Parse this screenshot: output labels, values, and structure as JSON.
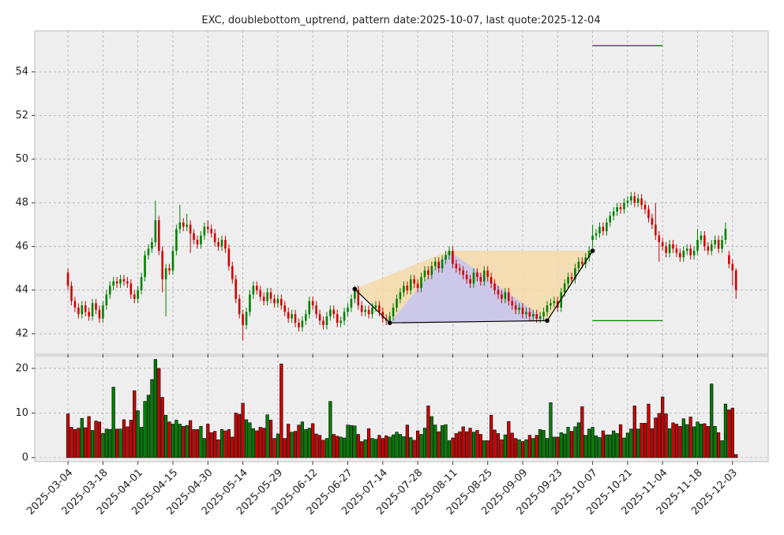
{
  "chart_data": {
    "type": "candlestick",
    "title": "EXC, doublebottom_uptrend, pattern date:2025-10-07, last quote:2025-12-04",
    "up_color": "#008000",
    "down_color": "#d00000",
    "grid": true,
    "xlim": [
      -9.5,
      200.2
    ],
    "xticks": [
      {
        "value": 0,
        "label": "2025-03-04"
      },
      {
        "value": 10,
        "label": "2025-03-18"
      },
      {
        "value": 20,
        "label": "2025-04-01"
      },
      {
        "value": 30,
        "label": "2025-04-15"
      },
      {
        "value": 40,
        "label": "2025-04-30"
      },
      {
        "value": 50,
        "label": "2025-05-14"
      },
      {
        "value": 60,
        "label": "2025-05-29"
      },
      {
        "value": 70,
        "label": "2025-06-12"
      },
      {
        "value": 80,
        "label": "2025-06-27"
      },
      {
        "value": 90,
        "label": "2025-07-14"
      },
      {
        "value": 100,
        "label": "2025-07-28"
      },
      {
        "value": 110,
        "label": "2025-08-11"
      },
      {
        "value": 120,
        "label": "2025-08-25"
      },
      {
        "value": 130,
        "label": "2025-09-09"
      },
      {
        "value": 140,
        "label": "2025-09-23"
      },
      {
        "value": 150,
        "label": "2025-10-07"
      },
      {
        "value": 160,
        "label": "2025-10-21"
      },
      {
        "value": 170,
        "label": "2025-11-04"
      },
      {
        "value": 180,
        "label": "2025-11-18"
      },
      {
        "value": 190,
        "label": "2025-12-03"
      }
    ],
    "ylim": [
      41.06,
      55.88
    ],
    "yticks": [
      42,
      44,
      46,
      48,
      50,
      52,
      54
    ],
    "y2lim": [
      -0.9,
      22.8
    ],
    "y2ticks": [
      0,
      10,
      20
    ],
    "open": [
      44.8,
      44.2,
      43.5,
      43.2,
      42.9,
      43.3,
      43.0,
      42.8,
      43.4,
      43.1,
      42.7,
      43.3,
      43.8,
      44.2,
      44.4,
      44.3,
      44.5,
      44.4,
      44.3,
      43.8,
      43.6,
      44.0,
      44.6,
      45.6,
      45.9,
      46.2,
      47.2,
      45.8,
      44.5,
      45.0,
      44.9,
      45.8,
      46.8,
      47.1,
      46.9,
      47.0,
      46.6,
      46.3,
      46.1,
      46.5,
      46.9,
      46.8,
      46.6,
      46.2,
      46.0,
      46.3,
      45.9,
      45.1,
      44.5,
      43.6,
      42.9,
      42.4,
      43.0,
      43.8,
      44.2,
      44.0,
      43.7,
      43.5,
      43.9,
      43.6,
      43.4,
      43.6,
      43.3,
      43.0,
      42.7,
      42.9,
      42.5,
      42.3,
      42.6,
      42.9,
      43.5,
      43.3,
      42.9,
      42.6,
      42.4,
      42.8,
      43.1,
      42.9,
      42.5,
      42.6,
      43.0,
      43.2,
      43.6,
      44.0,
      43.3,
      43.0,
      43.1,
      42.9,
      43.2,
      43.3,
      43.0,
      42.7,
      42.6,
      42.8,
      43.2,
      43.6,
      43.9,
      44.2,
      44.0,
      44.5,
      44.3,
      44.1,
      44.6,
      44.9,
      44.7,
      45.1,
      45.3,
      45.0,
      45.4,
      45.6,
      45.8,
      45.2,
      45.0,
      44.9,
      44.7,
      44.5,
      44.3,
      44.8,
      44.6,
      44.4,
      44.9,
      44.6,
      44.3,
      44.0,
      43.8,
      43.6,
      43.9,
      43.5,
      43.3,
      43.1,
      43.2,
      42.9,
      43.0,
      42.8,
      42.9,
      42.7,
      42.8,
      43.0,
      43.3,
      43.4,
      43.5,
      43.2,
      43.9,
      44.3,
      44.6,
      44.5,
      45.0,
      45.3,
      45.2,
      45.5,
      46.3,
      46.5,
      46.6,
      46.9,
      46.7,
      47.1,
      47.4,
      47.6,
      47.8,
      47.7,
      48.0,
      48.1,
      48.3,
      48.0,
      48.2,
      47.9,
      47.7,
      47.3,
      47.0,
      46.5,
      46.2,
      46.0,
      45.7,
      46.1,
      45.9,
      45.7,
      45.5,
      45.8,
      45.9,
      45.6,
      45.8,
      46.3,
      46.5,
      46.0,
      45.8,
      46.1,
      46.3,
      45.9,
      46.3,
      45.6,
      45.2,
      44.9
    ],
    "high": [
      45.0,
      44.4,
      43.7,
      43.4,
      43.5,
      43.5,
      43.2,
      43.6,
      43.6,
      43.3,
      43.5,
      44.0,
      44.4,
      44.6,
      44.6,
      44.7,
      44.7,
      44.6,
      44.5,
      44.0,
      44.2,
      44.8,
      45.8,
      46.1,
      46.4,
      48.1,
      47.4,
      46.0,
      45.2,
      45.2,
      46.0,
      47.0,
      47.9,
      47.3,
      47.5,
      47.2,
      46.8,
      46.5,
      46.7,
      47.1,
      47.2,
      47.0,
      46.8,
      46.4,
      46.5,
      46.5,
      46.1,
      45.3,
      44.7,
      43.8,
      43.1,
      43.2,
      44.0,
      44.4,
      44.4,
      44.2,
      43.9,
      44.1,
      44.1,
      43.8,
      43.8,
      43.8,
      43.5,
      43.2,
      43.1,
      43.1,
      42.7,
      42.8,
      43.1,
      43.7,
      43.7,
      43.5,
      43.1,
      42.8,
      43.0,
      43.3,
      43.3,
      43.1,
      42.8,
      43.2,
      43.4,
      43.8,
      44.2,
      44.2,
      43.5,
      43.3,
      43.3,
      43.4,
      43.5,
      43.5,
      43.2,
      42.9,
      43.0,
      43.4,
      43.8,
      44.1,
      44.4,
      44.4,
      44.7,
      44.7,
      44.5,
      44.8,
      45.1,
      45.1,
      45.3,
      45.5,
      45.5,
      45.6,
      45.8,
      46.0,
      46.0,
      45.4,
      45.2,
      45.1,
      44.9,
      44.7,
      45.0,
      45.0,
      44.8,
      45.1,
      45.1,
      44.8,
      44.5,
      44.2,
      44.0,
      44.1,
      44.1,
      43.7,
      43.5,
      43.4,
      43.4,
      43.2,
      43.2,
      43.1,
      43.1,
      43.0,
      43.2,
      43.5,
      43.6,
      43.7,
      43.7,
      44.1,
      44.5,
      44.8,
      44.8,
      45.2,
      45.5,
      45.5,
      45.7,
      46.0,
      47.0,
      46.8,
      47.1,
      47.1,
      47.3,
      47.6,
      47.8,
      48.0,
      48.0,
      48.2,
      48.3,
      48.5,
      48.5,
      48.4,
      48.4,
      48.1,
      47.9,
      47.5,
      48.0,
      46.7,
      46.4,
      46.2,
      46.3,
      46.3,
      46.1,
      45.9,
      46.0,
      46.1,
      46.1,
      46.0,
      46.8,
      46.7,
      46.7,
      46.2,
      46.3,
      46.5,
      46.5,
      46.5,
      47.1,
      45.8,
      45.4,
      45.0
    ],
    "low": [
      44.0,
      43.3,
      43.0,
      42.7,
      42.7,
      42.8,
      42.6,
      42.6,
      42.9,
      42.5,
      42.5,
      43.1,
      43.6,
      44.0,
      44.1,
      44.1,
      44.2,
      44.1,
      43.6,
      43.4,
      43.4,
      43.8,
      44.4,
      45.4,
      45.7,
      46.0,
      45.6,
      43.9,
      42.8,
      44.7,
      44.7,
      45.6,
      46.6,
      46.7,
      46.7,
      45.7,
      46.1,
      45.9,
      45.9,
      46.3,
      46.6,
      46.4,
      46.0,
      45.8,
      45.8,
      45.7,
      44.9,
      44.3,
      43.4,
      42.7,
      41.7,
      42.2,
      42.8,
      43.6,
      43.8,
      43.5,
      43.3,
      43.3,
      43.4,
      43.2,
      43.2,
      43.1,
      42.8,
      42.5,
      42.5,
      42.3,
      42.1,
      42.1,
      42.4,
      42.7,
      43.1,
      42.7,
      42.4,
      42.2,
      42.2,
      42.6,
      42.7,
      42.3,
      42.3,
      42.4,
      42.8,
      43.0,
      43.4,
      43.1,
      42.8,
      42.8,
      42.7,
      42.7,
      43.0,
      42.8,
      42.5,
      42.4,
      42.4,
      42.6,
      43.0,
      43.4,
      43.7,
      43.8,
      43.8,
      44.1,
      43.9,
      43.9,
      44.4,
      44.5,
      44.5,
      44.9,
      44.8,
      44.8,
      45.2,
      45.4,
      45.0,
      44.8,
      44.7,
      44.5,
      44.3,
      44.1,
      44.1,
      44.4,
      44.2,
      44.2,
      44.4,
      44.1,
      43.8,
      43.6,
      43.4,
      43.4,
      43.3,
      43.1,
      42.9,
      42.9,
      42.7,
      42.7,
      42.6,
      42.6,
      42.5,
      42.5,
      42.6,
      42.8,
      43.1,
      43.2,
      43.0,
      43.0,
      43.7,
      44.1,
      44.3,
      44.3,
      44.8,
      45.0,
      45.0,
      45.3,
      45.8,
      46.3,
      46.4,
      46.5,
      46.5,
      46.9,
      47.2,
      47.4,
      47.5,
      47.5,
      47.8,
      47.9,
      47.8,
      47.8,
      47.7,
      47.5,
      47.1,
      46.8,
      46.3,
      45.3,
      45.8,
      45.5,
      45.5,
      45.7,
      45.5,
      45.3,
      45.3,
      45.6,
      45.4,
      45.4,
      45.6,
      46.1,
      45.8,
      45.6,
      45.6,
      45.9,
      45.7,
      45.7,
      46.1,
      45.0,
      44.2,
      43.6
    ],
    "close": [
      44.2,
      43.5,
      43.2,
      42.9,
      43.3,
      43.0,
      42.8,
      43.4,
      43.1,
      42.7,
      43.3,
      43.8,
      44.2,
      44.4,
      44.3,
      44.5,
      44.4,
      44.3,
      43.8,
      43.6,
      44.0,
      44.6,
      45.6,
      45.9,
      46.2,
      47.2,
      45.8,
      44.5,
      45.0,
      44.9,
      45.8,
      46.8,
      47.1,
      46.9,
      47.0,
      46.6,
      46.3,
      46.1,
      46.5,
      46.9,
      46.8,
      46.6,
      46.2,
      46.0,
      46.3,
      45.9,
      45.1,
      44.5,
      43.6,
      42.9,
      42.4,
      43.0,
      43.8,
      44.2,
      44.0,
      43.7,
      43.5,
      43.9,
      43.6,
      43.4,
      43.6,
      43.3,
      43.0,
      42.7,
      42.9,
      42.5,
      42.3,
      42.6,
      42.9,
      43.5,
      43.3,
      42.9,
      42.6,
      42.4,
      42.8,
      43.1,
      42.9,
      42.5,
      42.6,
      43.0,
      43.2,
      43.6,
      44.0,
      43.3,
      43.0,
      43.1,
      42.9,
      43.2,
      43.3,
      43.0,
      42.7,
      42.6,
      42.8,
      43.2,
      43.6,
      43.9,
      44.2,
      44.0,
      44.5,
      44.3,
      44.1,
      44.6,
      44.9,
      44.7,
      45.1,
      45.3,
      45.0,
      45.4,
      45.6,
      45.8,
      45.2,
      45.0,
      44.9,
      44.7,
      44.5,
      44.3,
      44.8,
      44.6,
      44.4,
      44.9,
      44.6,
      44.3,
      44.0,
      43.8,
      43.6,
      43.9,
      43.5,
      43.3,
      43.1,
      43.2,
      42.9,
      43.0,
      42.8,
      42.9,
      42.7,
      42.8,
      43.0,
      43.3,
      43.4,
      43.5,
      43.2,
      43.9,
      44.3,
      44.6,
      44.5,
      45.0,
      45.3,
      45.2,
      45.5,
      45.8,
      46.5,
      46.6,
      46.9,
      46.7,
      47.1,
      47.4,
      47.6,
      47.8,
      47.7,
      48.0,
      48.1,
      48.3,
      48.0,
      48.2,
      47.9,
      47.7,
      47.3,
      47.0,
      46.5,
      46.2,
      46.0,
      45.7,
      46.1,
      45.9,
      45.7,
      45.5,
      45.8,
      45.9,
      45.6,
      45.8,
      46.3,
      46.5,
      46.0,
      45.8,
      46.1,
      46.3,
      45.9,
      46.3,
      46.8,
      45.2,
      44.9,
      44.0
    ],
    "volume": [
      9.8,
      6.8,
      6.3,
      6.6,
      8.8,
      6.7,
      9.2,
      6.1,
      8.2,
      8.0,
      5.4,
      6.4,
      6.3,
      15.8,
      6.4,
      6.4,
      8.5,
      6.9,
      8.4,
      15.0,
      10.5,
      6.8,
      12.6,
      14.0,
      17.5,
      22.0,
      20.0,
      13.5,
      9.5,
      8.0,
      7.5,
      8.4,
      7.5,
      7.0,
      7.2,
      8.3,
      6.3,
      6.3,
      7.0,
      4.3,
      7.5,
      5.6,
      5.9,
      4.0,
      6.3,
      6.0,
      6.3,
      4.6,
      10.0,
      9.7,
      12.2,
      8.5,
      7.8,
      6.5,
      6.0,
      6.8,
      6.6,
      9.6,
      8.4,
      4.3,
      5.3,
      21.0,
      4.3,
      7.5,
      5.7,
      5.9,
      7.3,
      8.0,
      6.3,
      6.6,
      7.6,
      5.3,
      5.0,
      3.9,
      4.3,
      12.6,
      5.2,
      4.8,
      4.6,
      4.4,
      7.3,
      7.2,
      7.1,
      5.2,
      3.6,
      4.0,
      6.5,
      4.3,
      4.1,
      5.0,
      4.3,
      4.9,
      4.6,
      5.1,
      5.7,
      5.2,
      4.7,
      7.3,
      4.5,
      3.9,
      6.0,
      5.2,
      6.6,
      11.6,
      9.2,
      7.3,
      5.8,
      7.2,
      7.4,
      3.8,
      4.4,
      5.4,
      5.8,
      6.9,
      5.8,
      6.6,
      5.7,
      6.1,
      5.2,
      3.8,
      3.8,
      9.5,
      6.2,
      5.4,
      4.0,
      5.1,
      8.1,
      5.5,
      4.3,
      4.0,
      3.6,
      4.0,
      5.0,
      4.3,
      5.0,
      6.3,
      6.1,
      4.3,
      12.3,
      4.6,
      4.6,
      5.6,
      5.3,
      6.8,
      5.9,
      6.9,
      7.8,
      11.4,
      5.0,
      6.4,
      6.8,
      4.9,
      4.5,
      6.0,
      5.1,
      5.1,
      6.0,
      5.4,
      7.4,
      4.4,
      5.5,
      6.4,
      11.6,
      6.4,
      7.7,
      7.7,
      12.0,
      6.5,
      8.9,
      9.9,
      13.6,
      9.8,
      6.5,
      7.8,
      7.5,
      7.0,
      8.7,
      7.4,
      9.1,
      6.9,
      8.0,
      7.5,
      7.6,
      7.0,
      16.5,
      7.0,
      5.6,
      3.8,
      12.0,
      10.7,
      11.1,
      0.7
    ],
    "pattern": {
      "points": [
        {
          "x": 82,
          "y": 44.05
        },
        {
          "x": 92,
          "y": 42.5
        },
        {
          "x": 137,
          "y": 42.6
        },
        {
          "x": 150,
          "y": 45.8
        }
      ],
      "peak": {
        "x": 109,
        "y": 45.8
      },
      "outer_color": "#f5d9a8",
      "inner_color": "#c4c4f2"
    },
    "levels": [
      {
        "y": 55.2,
        "x": [
          150,
          170
        ]
      },
      {
        "y": 42.6,
        "x": [
          150,
          170
        ]
      }
    ],
    "level_color": "#008000"
  }
}
